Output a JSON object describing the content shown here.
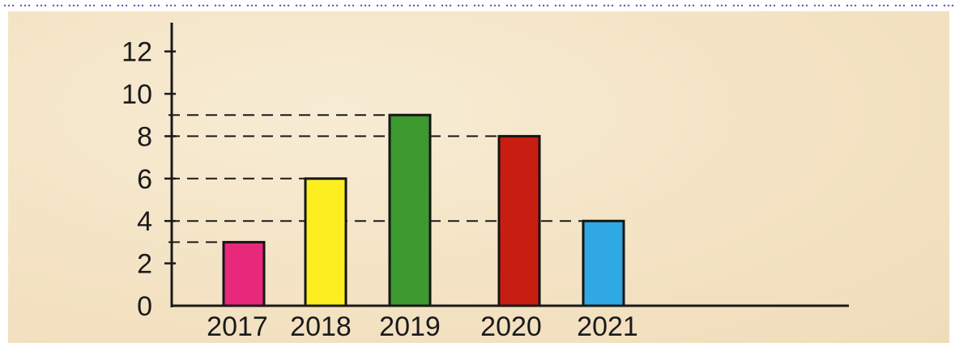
{
  "caption": {
    "text": "... ... ... ... ... ... ... ... ... ... ... ... ... ... ... ... ... ... ... ... ... ... ... ... ... ... ... ... ... ... ... ... ... ... ... ... ... ... ... ... ... ... ... ... ... ... ... ... ... ... ... ... ... ... ... ... ... ... ... ... ... ... ... ... ... ... ... ... ... ... ... ... ... ... ... ... ... ... ... ... ... ... ... ... ... ... ... ... ... ... ... ... ... ... ... ... ... ... ... ... ... ... ... ... ... ... ... ... ... ... ... ... ... ... ... ... ... ... ... ... ... ... ... ... ... ... ... ... ... ... ... ... ... ... ... ... ... ... ... ... ... ... ..."
  },
  "colors": {
    "background": "#f4e4c6",
    "axis": "#1a1a1a",
    "caption": "#6a4aa8"
  },
  "chart_data": {
    "type": "bar",
    "categories": [
      "2017",
      "2018",
      "2019",
      "2020",
      "2021"
    ],
    "values": [
      3,
      6,
      9,
      8,
      4
    ],
    "bar_colors": [
      "#e8287a",
      "#fcee21",
      "#3c9a2e",
      "#c81e12",
      "#2fa8e4"
    ],
    "yticks": [
      "0",
      "2",
      "4",
      "6",
      "8",
      "10",
      "12"
    ],
    "ylim": [
      0,
      12
    ],
    "reference_lines": [
      3,
      4,
      6,
      8,
      9
    ],
    "title": "",
    "xlabel": "",
    "ylabel": "",
    "grid": false,
    "legend": "none"
  }
}
